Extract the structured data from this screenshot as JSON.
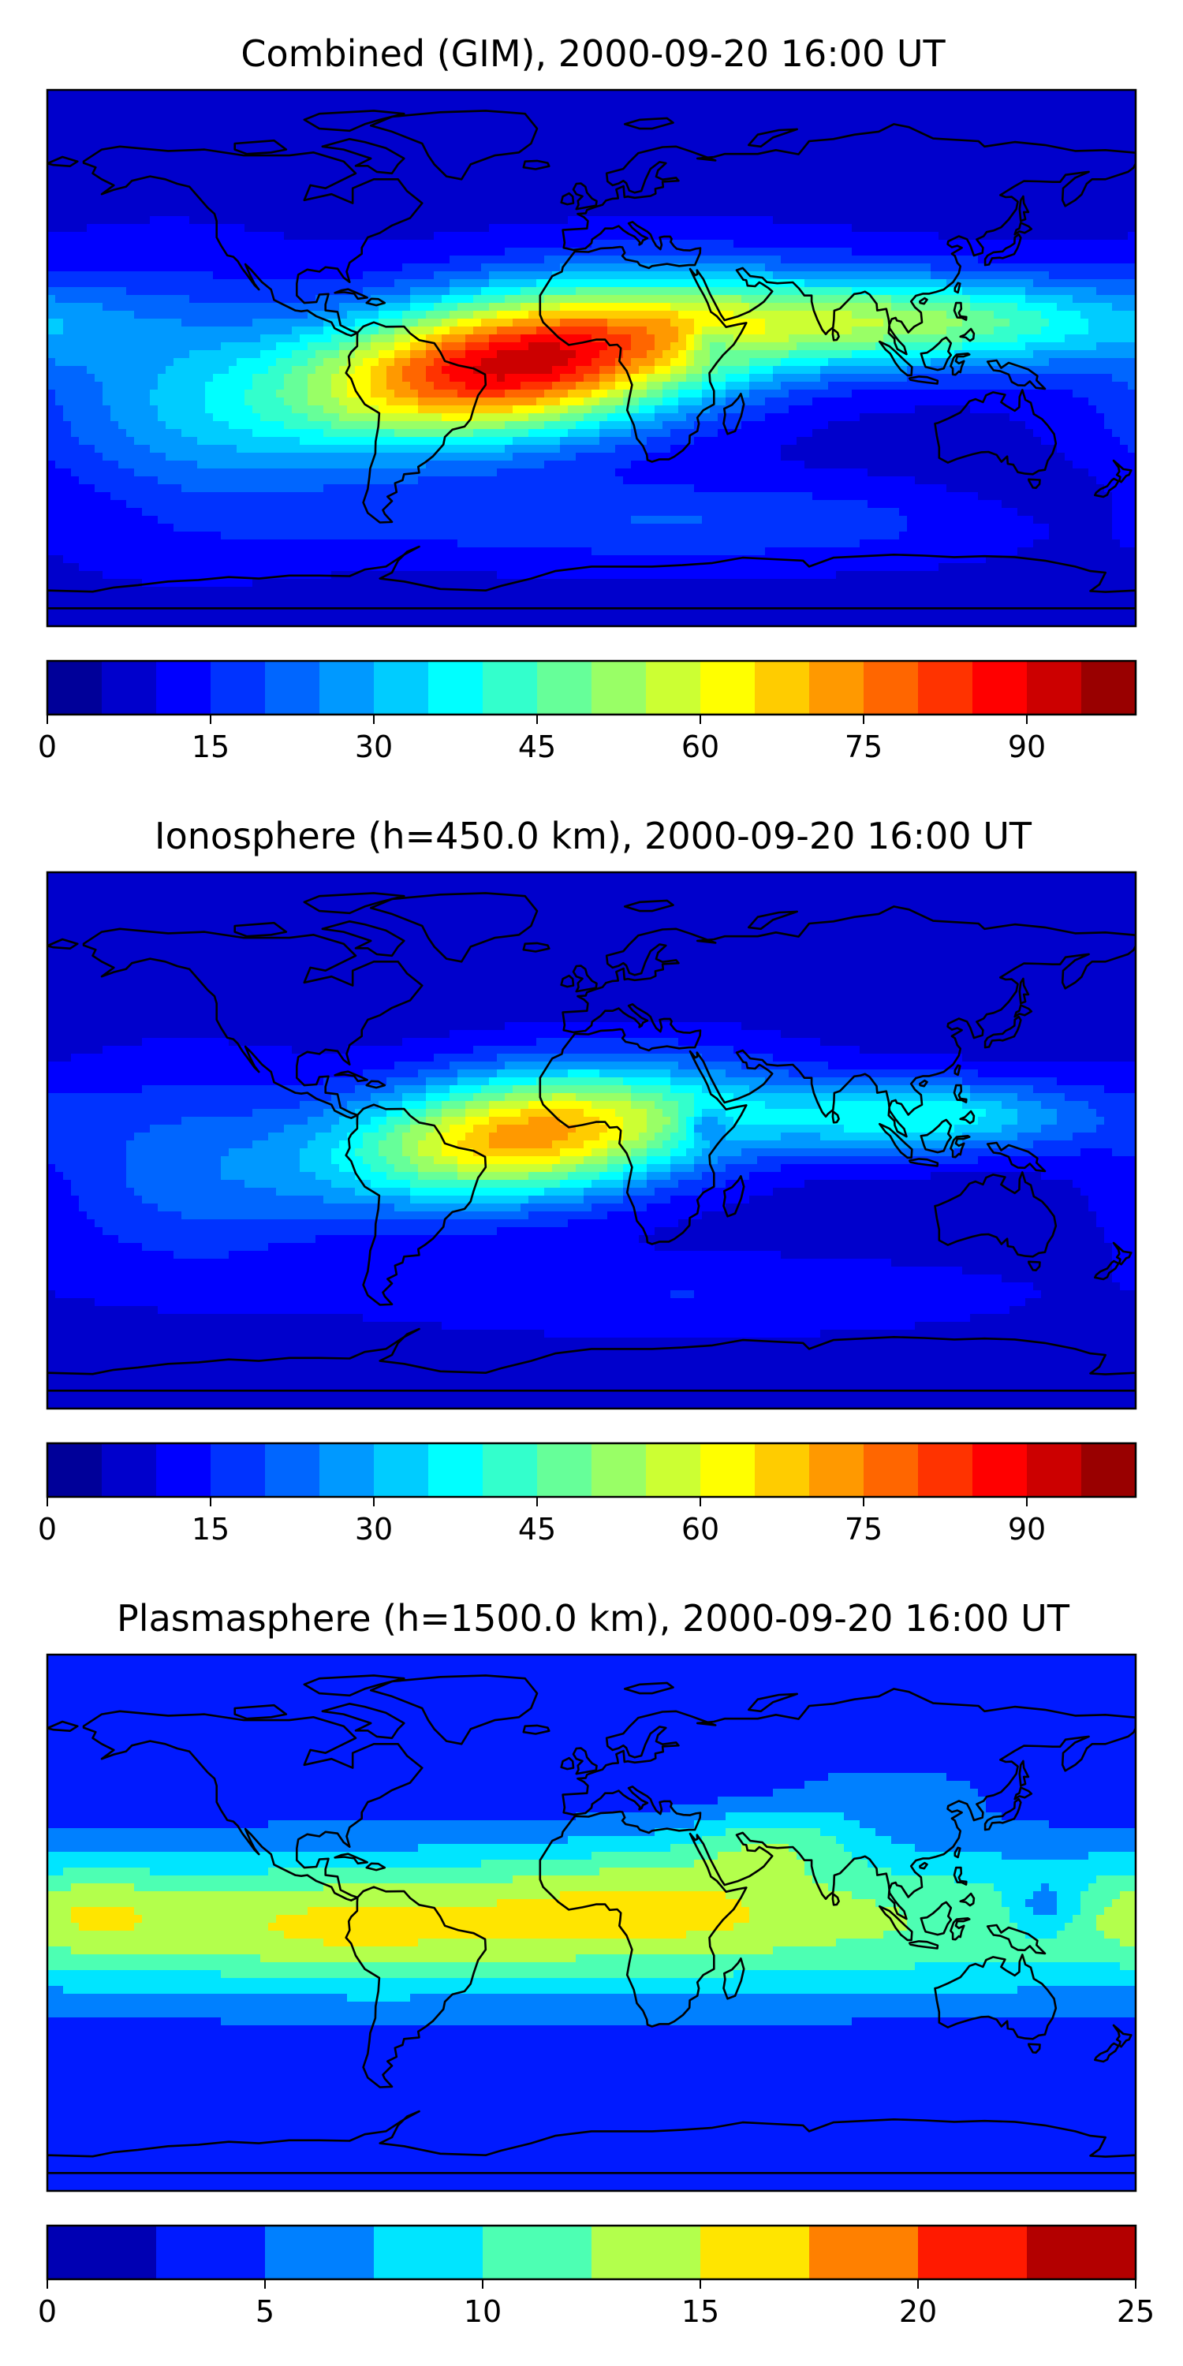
{
  "panels": [
    {
      "title": "Combined (GIM), 2000-09-20 16:00 UT",
      "colorbar": {
        "min": 0,
        "max": 100,
        "step": 5,
        "ticks": [
          "0",
          "15",
          "30",
          "45",
          "60",
          "75",
          "90"
        ],
        "tick_values": [
          0,
          15,
          30,
          45,
          60,
          75,
          90
        ]
      },
      "field": {
        "background": 8,
        "blobs": [
          {
            "lon": -25,
            "lat": -2,
            "amp": 84,
            "slon": 52,
            "slat": 17,
            "tilt": 0.12
          },
          {
            "lon": 105,
            "lat": 12,
            "amp": 42,
            "slon": 55,
            "slat": 11,
            "tilt": 0
          },
          {
            "lon": -140,
            "lat": -15,
            "amp": 16,
            "slon": 38,
            "slat": 30,
            "tilt": 0
          },
          {
            "lon": 30,
            "lat": -55,
            "amp": 12,
            "slon": 90,
            "slat": 10,
            "tilt": 0
          },
          {
            "lon": 40,
            "lat": 5,
            "amp": -14,
            "slon": 6,
            "slat": 4,
            "tilt": 0
          },
          {
            "lon": 165,
            "lat": -50,
            "amp": -5,
            "slon": 40,
            "slat": 12,
            "tilt": 0
          }
        ]
      }
    },
    {
      "title": "Ionosphere  (h=450.0 km), 2000-09-20 16:00 UT",
      "colorbar": {
        "min": 0,
        "max": 100,
        "step": 5,
        "ticks": [
          "0",
          "15",
          "30",
          "45",
          "60",
          "75",
          "90"
        ],
        "tick_values": [
          0,
          15,
          30,
          45,
          60,
          75,
          90
        ]
      },
      "field": {
        "background": 7,
        "blobs": [
          {
            "lon": -20,
            "lat": 2,
            "amp": 66,
            "slon": 45,
            "slat": 15,
            "tilt": 0.1
          },
          {
            "lon": 108,
            "lat": 8,
            "amp": 32,
            "slon": 40,
            "slat": 9,
            "tilt": 0
          },
          {
            "lon": -135,
            "lat": -10,
            "amp": 14,
            "slon": 35,
            "slat": 25,
            "tilt": 0
          },
          {
            "lon": 30,
            "lat": -52,
            "amp": 8,
            "slon": 80,
            "slat": 10,
            "tilt": 0
          },
          {
            "lon": 38,
            "lat": 5,
            "amp": -16,
            "slon": 5,
            "slat": 4,
            "tilt": 0
          }
        ]
      }
    },
    {
      "title": "Plasmasphere (h=1500.0 km), 2000-09-20 16:00 UT",
      "colorbar": {
        "min": 0,
        "max": 25,
        "step": 2.5,
        "ticks": [
          "0",
          "5",
          "10",
          "15",
          "20",
          "25"
        ],
        "tick_values": [
          0,
          5,
          10,
          15,
          20,
          25
        ]
      },
      "field": {
        "background": 2.5,
        "blobs": [
          {
            "lon": 0,
            "lat": 0,
            "amp": 10,
            "slon": 400,
            "slat": 20,
            "tilt": 0
          },
          {
            "lon": -80,
            "lat": -2,
            "amp": 3.5,
            "slon": 40,
            "slat": 12,
            "tilt": 0
          },
          {
            "lon": 20,
            "lat": 8,
            "amp": 4,
            "slon": 40,
            "slat": 14,
            "tilt": 0
          },
          {
            "lon": 60,
            "lat": 28,
            "amp": 5,
            "slon": 20,
            "slat": 8,
            "tilt": 0
          },
          {
            "lon": -165,
            "lat": 3,
            "amp": 3.5,
            "slon": 20,
            "slat": 10,
            "tilt": 0
          },
          {
            "lon": 150,
            "lat": 5,
            "amp": -5,
            "slon": 9,
            "slat": 7,
            "tilt": 0
          },
          {
            "lon": 100,
            "lat": 45,
            "amp": 3,
            "slon": 25,
            "slat": 8,
            "tilt": 0
          }
        ]
      }
    }
  ],
  "coastline_color": "#000000",
  "frame_color": "#000000"
}
